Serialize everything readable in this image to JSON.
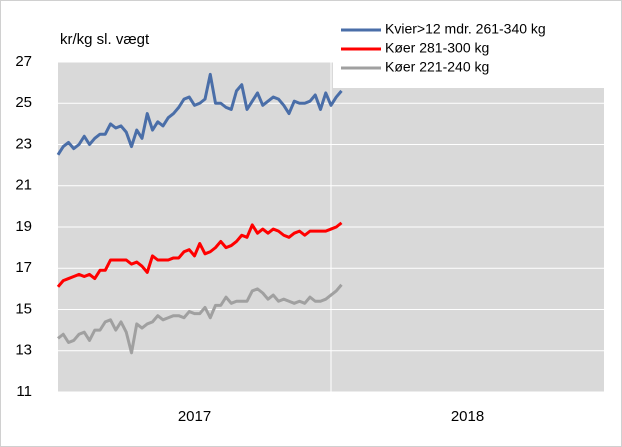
{
  "chart_data": {
    "type": "line",
    "y_axis_label": "kr/kg sl. vægt",
    "x": [
      0,
      1,
      2,
      3,
      4,
      5,
      6,
      7,
      8,
      9,
      10,
      11,
      12,
      13,
      14,
      15,
      16,
      17,
      18,
      19,
      20,
      21,
      22,
      23,
      24,
      25,
      26,
      27,
      28,
      29,
      30,
      31,
      32,
      33,
      34,
      35,
      36,
      37,
      38,
      39,
      40,
      41,
      42,
      43,
      44,
      45,
      46,
      47,
      48,
      49,
      50,
      51,
      52,
      53,
      54
    ],
    "xlim": [
      0,
      104
    ],
    "xticks": [
      {
        "value": 26,
        "label": "2017"
      },
      {
        "value": 78,
        "label": "2018"
      }
    ],
    "ylim": [
      11,
      27
    ],
    "yticks": [
      11,
      13,
      15,
      17,
      19,
      21,
      23,
      25,
      27
    ],
    "grid": true,
    "legend": "upper right",
    "series": [
      {
        "name": "Kvier>12 mdr. 261-340 kg",
        "color": "#4a6ea8",
        "values": [
          22.5,
          22.9,
          23.1,
          22.8,
          23.0,
          23.4,
          23.0,
          23.3,
          23.5,
          23.5,
          24.0,
          23.8,
          23.9,
          23.6,
          22.9,
          23.7,
          23.3,
          24.5,
          23.7,
          24.1,
          23.9,
          24.3,
          24.5,
          24.8,
          25.2,
          25.3,
          24.9,
          25.0,
          25.2,
          26.4,
          25.0,
          25.0,
          24.8,
          24.7,
          25.6,
          25.9,
          24.7,
          25.1,
          25.5,
          24.9,
          25.1,
          25.3,
          25.2,
          24.9,
          24.5,
          25.1,
          25.0,
          25.0,
          25.1,
          25.4,
          24.7,
          25.5,
          24.9,
          25.3,
          25.6
        ]
      },
      {
        "name": "Køer 281-300 kg",
        "color": "#ff0000",
        "values": [
          16.1,
          16.4,
          16.5,
          16.6,
          16.7,
          16.6,
          16.7,
          16.5,
          16.9,
          16.9,
          17.4,
          17.4,
          17.4,
          17.4,
          17.2,
          17.3,
          17.1,
          16.8,
          17.6,
          17.4,
          17.4,
          17.4,
          17.5,
          17.5,
          17.8,
          17.9,
          17.6,
          18.2,
          17.7,
          17.8,
          18.0,
          18.3,
          18.0,
          18.1,
          18.3,
          18.6,
          18.5,
          19.1,
          18.7,
          18.9,
          18.7,
          18.9,
          18.8,
          18.6,
          18.5,
          18.7,
          18.8,
          18.6,
          18.8,
          18.8,
          18.8,
          18.8,
          18.9,
          19.0,
          19.2
        ]
      },
      {
        "name": "Køer 221-240 kg",
        "color": "#a0a0a0",
        "values": [
          13.6,
          13.8,
          13.4,
          13.5,
          13.8,
          13.9,
          13.5,
          14.0,
          14.0,
          14.4,
          14.5,
          14.0,
          14.4,
          13.9,
          12.9,
          14.3,
          14.1,
          14.3,
          14.4,
          14.7,
          14.5,
          14.6,
          14.7,
          14.7,
          14.6,
          14.9,
          14.8,
          14.8,
          15.1,
          14.6,
          15.2,
          15.2,
          15.6,
          15.3,
          15.4,
          15.4,
          15.4,
          15.9,
          16.0,
          15.8,
          15.5,
          15.7,
          15.4,
          15.5,
          15.4,
          15.3,
          15.4,
          15.3,
          15.6,
          15.4,
          15.4,
          15.5,
          15.7,
          15.9,
          16.2
        ]
      }
    ]
  }
}
